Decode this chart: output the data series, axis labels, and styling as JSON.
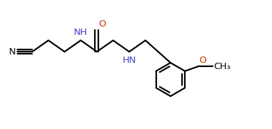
{
  "bg_color": "#ffffff",
  "bond_color": "#000000",
  "N_color": "#4040bb",
  "O_color": "#cc3300",
  "C_color": "#000000",
  "line_width": 1.6,
  "font_size": 9.5,
  "fig_width": 3.9,
  "fig_height": 1.85,
  "dpi": 100,
  "xlim": [
    0,
    10
  ],
  "ylim": [
    0,
    4.75
  ]
}
